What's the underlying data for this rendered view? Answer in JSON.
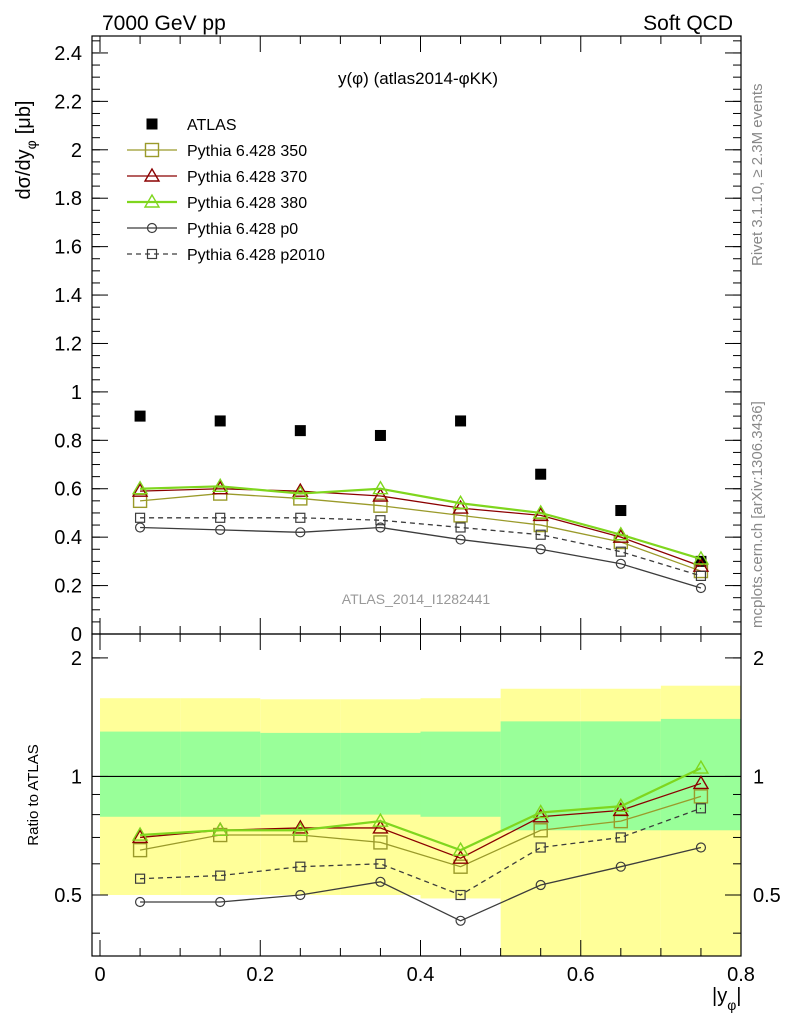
{
  "header": {
    "left": "7000 GeV pp",
    "right": "Soft QCD"
  },
  "side_text": {
    "rivet": "Rivet 3.1.10, ≥ 2.3M events",
    "mcplots": "mcplots.cern.ch [arXiv:1306.3436]"
  },
  "chart_data": [
    {
      "type": "scatter",
      "panel": "main",
      "title": "y(φ) (atlas2014-φKK)",
      "watermark": "ATLAS_2014_I1282441",
      "ylabel": "dσ/dy",
      "ylabel_sub": "φ",
      "ylabel_unit": "[μb]",
      "xlim": [
        -0.01,
        0.8
      ],
      "ylim": [
        0,
        2.47
      ],
      "yticks": [
        0,
        0.2,
        0.4,
        0.6,
        0.8,
        1,
        1.2,
        1.4,
        1.6,
        1.8,
        2,
        2.2,
        2.4
      ],
      "ytick_labels": [
        "0",
        "0.2",
        "0.4",
        "0.6",
        "0.8",
        "1",
        "1.2",
        "1.4",
        "1.6",
        "1.8",
        "2",
        "2.2",
        "2.4"
      ],
      "legend_position": "top-left",
      "x": [
        0.05,
        0.15,
        0.25,
        0.35,
        0.45,
        0.55,
        0.65,
        0.75
      ],
      "series": [
        {
          "name": "ATLAS",
          "color": "#000000",
          "marker": "filled-square",
          "line": "none",
          "values": [
            0.9,
            0.88,
            0.84,
            0.82,
            0.88,
            0.66,
            0.51,
            0.3
          ]
        },
        {
          "name": "Pythia 6.428 350",
          "color": "#9a9a2a",
          "marker": "open-square",
          "line": "solid",
          "values": [
            0.55,
            0.58,
            0.56,
            0.53,
            0.49,
            0.45,
            0.38,
            0.26
          ]
        },
        {
          "name": "Pythia 6.428 370",
          "color": "#8b0000",
          "marker": "open-triangle",
          "line": "solid",
          "values": [
            0.59,
            0.6,
            0.59,
            0.57,
            0.52,
            0.49,
            0.4,
            0.28
          ]
        },
        {
          "name": "Pythia 6.428 380",
          "color": "#7fd61e",
          "marker": "open-triangle",
          "line": "solid",
          "values": [
            0.6,
            0.61,
            0.58,
            0.6,
            0.54,
            0.5,
            0.41,
            0.31
          ]
        },
        {
          "name": "Pythia 6.428 p0",
          "color": "#3c3c3c",
          "marker": "open-circle",
          "line": "solid",
          "values": [
            0.44,
            0.43,
            0.42,
            0.44,
            0.39,
            0.35,
            0.29,
            0.19
          ]
        },
        {
          "name": "Pythia 6.428 p2010",
          "color": "#3c3c3c",
          "marker": "open-square-small",
          "line": "dashed",
          "values": [
            0.48,
            0.48,
            0.48,
            0.47,
            0.44,
            0.41,
            0.34,
            0.24
          ]
        }
      ]
    },
    {
      "type": "line",
      "panel": "ratio",
      "ylabel": "Ratio to ATLAS",
      "xlabel": "|y",
      "xlabel_sub": "φ",
      "xlim": [
        -0.01,
        0.8
      ],
      "ylim": [
        0.35,
        2.3
      ],
      "xticks": [
        0,
        0.2,
        0.4,
        0.6,
        0.8
      ],
      "xtick_labels": [
        "0",
        "0.2",
        "0.4",
        "0.6",
        "0.8"
      ],
      "yticks": [
        0.5,
        1,
        2
      ],
      "ytick_labels": [
        "0.5",
        "1",
        "2"
      ],
      "reference_line": 1,
      "bands": {
        "bin_edges": [
          0.0,
          0.1,
          0.2,
          0.3,
          0.4,
          0.5,
          0.6,
          0.7,
          0.8
        ],
        "yellow_low": [
          0.5,
          0.5,
          0.5,
          0.5,
          0.49,
          0.2,
          0.2,
          0.2
        ],
        "yellow_high": [
          1.58,
          1.58,
          1.57,
          1.57,
          1.58,
          1.67,
          1.67,
          1.7
        ],
        "green_low": [
          0.79,
          0.79,
          0.8,
          0.8,
          0.79,
          0.73,
          0.73,
          0.73
        ],
        "green_high": [
          1.3,
          1.3,
          1.29,
          1.29,
          1.3,
          1.38,
          1.38,
          1.4
        ]
      },
      "x": [
        0.05,
        0.15,
        0.25,
        0.35,
        0.45,
        0.55,
        0.65,
        0.75
      ],
      "series": [
        {
          "name": "Pythia 6.428 350",
          "color": "#9a9a2a",
          "marker": "open-square",
          "line": "solid",
          "values": [
            0.65,
            0.71,
            0.71,
            0.68,
            0.59,
            0.73,
            0.77,
            0.89
          ]
        },
        {
          "name": "Pythia 6.428 370",
          "color": "#8b0000",
          "marker": "open-triangle",
          "line": "solid",
          "values": [
            0.7,
            0.73,
            0.74,
            0.74,
            0.62,
            0.79,
            0.82,
            0.96
          ]
        },
        {
          "name": "Pythia 6.428 380",
          "color": "#7fd61e",
          "marker": "open-triangle",
          "line": "solid",
          "values": [
            0.71,
            0.73,
            0.73,
            0.77,
            0.65,
            0.81,
            0.84,
            1.05
          ]
        },
        {
          "name": "Pythia 6.428 p0",
          "color": "#3c3c3c",
          "marker": "open-circle",
          "line": "solid",
          "values": [
            0.48,
            0.48,
            0.5,
            0.54,
            0.43,
            0.53,
            0.59,
            0.66
          ]
        },
        {
          "name": "Pythia 6.428 p2010",
          "color": "#3c3c3c",
          "marker": "open-square-small",
          "line": "dashed",
          "values": [
            0.55,
            0.56,
            0.59,
            0.6,
            0.5,
            0.66,
            0.7,
            0.83
          ]
        }
      ]
    }
  ]
}
